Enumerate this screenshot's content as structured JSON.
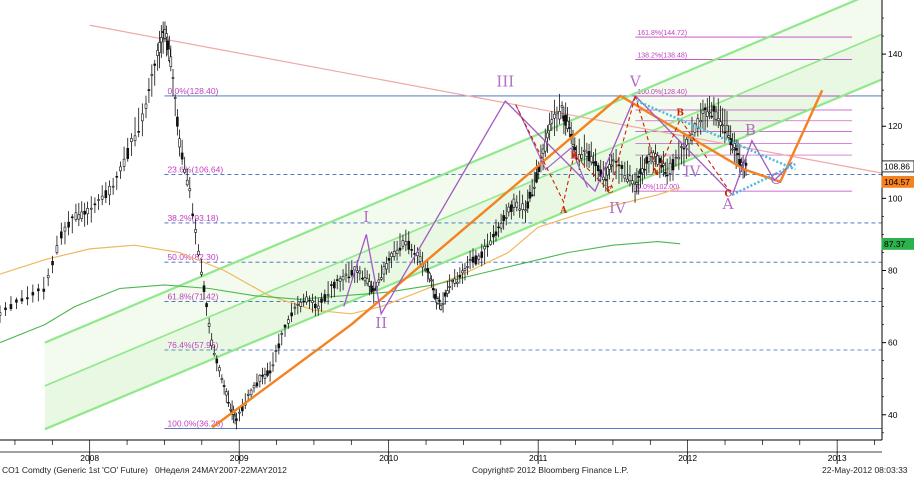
{
  "chart_data": {
    "type": "candlestick",
    "instrument": "CO1 Comdty (Generic 1st 'CO' Future)",
    "period": "0Неделя 24MAY2007-22MAY2012",
    "copyright": "Copyright© 2012 Bloomberg Finance L.P.",
    "timestamp": "22-May-2012 08:03:33",
    "x_ticks": [
      "2008",
      "2009",
      "2010",
      "2011",
      "2012",
      "2013"
    ],
    "y_ticks": [
      40,
      60,
      80,
      100,
      120,
      140
    ],
    "ylim": [
      33,
      155
    ],
    "xlim": [
      2007.4,
      2013.3
    ],
    "price_labels": [
      {
        "value": 108.86,
        "text": "108.86",
        "color": "#ffffff",
        "text_color": "#000000"
      },
      {
        "value": 104.57,
        "text": "104.57",
        "color": "#f58220",
        "text_color": "#000000"
      },
      {
        "value": 87.37,
        "text": "87.37",
        "color": "#2bb24c",
        "text_color": "#000000"
      }
    ],
    "fib_levels_main": [
      {
        "value": 128.4,
        "label": "0.0%(128.40)"
      },
      {
        "value": 106.64,
        "label": "23.6%(106.64)"
      },
      {
        "value": 93.18,
        "label": "38.2%(93.18)"
      },
      {
        "value": 82.3,
        "label": "50.0%(82.30)"
      },
      {
        "value": 71.42,
        "label": "61.8%(71.42)"
      },
      {
        "value": 57.96,
        "label": "76.4%(57.96)"
      },
      {
        "value": 36.2,
        "label": "100.0%(36.20)"
      }
    ],
    "fib_levels_ext": [
      {
        "value": 144.72,
        "label": "161.8%(144.72)"
      },
      {
        "value": 138.48,
        "label": "138.2%(138.48)"
      },
      {
        "value": 128.4,
        "label": "100.0%(128.40)"
      },
      {
        "value": 102.0,
        "label": "0.0%(102.00)"
      }
    ],
    "fib_ext_extra_lines": [
      124.5,
      121.5,
      118.5,
      115.2,
      112.0
    ],
    "wave_labels": [
      {
        "text": "I",
        "x": 2009.85,
        "y": 93.5,
        "color": "#b070c0"
      },
      {
        "text": "II",
        "x": 2009.95,
        "y": 64.0,
        "color": "#b070c0"
      },
      {
        "text": "III",
        "x": 2010.78,
        "y": 131.0,
        "color": "#b070c0"
      },
      {
        "text": "IV",
        "x": 2011.53,
        "y": 96.0,
        "color": "#b070c0"
      },
      {
        "text": "V",
        "x": 2011.65,
        "y": 131.0,
        "color": "#b070c0"
      },
      {
        "text": "IV",
        "x": 2012.03,
        "y": 106.0,
        "color": "#b070c0"
      },
      {
        "text": "A",
        "x": 2012.27,
        "y": 97.0,
        "color": "#b070c0"
      },
      {
        "text": "B",
        "x": 2012.42,
        "y": 117.5,
        "color": "#b070c0"
      },
      {
        "text": "C",
        "x": 2012.59,
        "y": 104.0,
        "color": "#b070c0"
      },
      {
        "text": "B",
        "x": 2011.24,
        "y": 111.0,
        "color": "#cc2200"
      },
      {
        "text": "A",
        "x": 2011.17,
        "y": 96.0,
        "color": "#cc2200"
      },
      {
        "text": "C",
        "x": 2011.48,
        "y": 101.5,
        "color": "#cc2200"
      },
      {
        "text": "A",
        "x": 2011.78,
        "y": 106.5,
        "color": "#cc2200"
      },
      {
        "text": "B",
        "x": 2011.95,
        "y": 123.0,
        "color": "#cc2200"
      },
      {
        "text": "C",
        "x": 2012.27,
        "y": 100.5,
        "color": "#cc2200"
      }
    ],
    "colors": {
      "channel_fill": "#e6f7e0",
      "channel_line": "#8fe88a",
      "orange": "#f58220",
      "purple": "#a259c4",
      "red": "#cc2200",
      "cyan": "#4fb8e0",
      "fib": "#c040c0",
      "fib_main": "#3a6ab5",
      "ma_orange": "#f0b860",
      "ma_green": "#4cb84c",
      "trend_red": "#f0a8a8"
    }
  }
}
